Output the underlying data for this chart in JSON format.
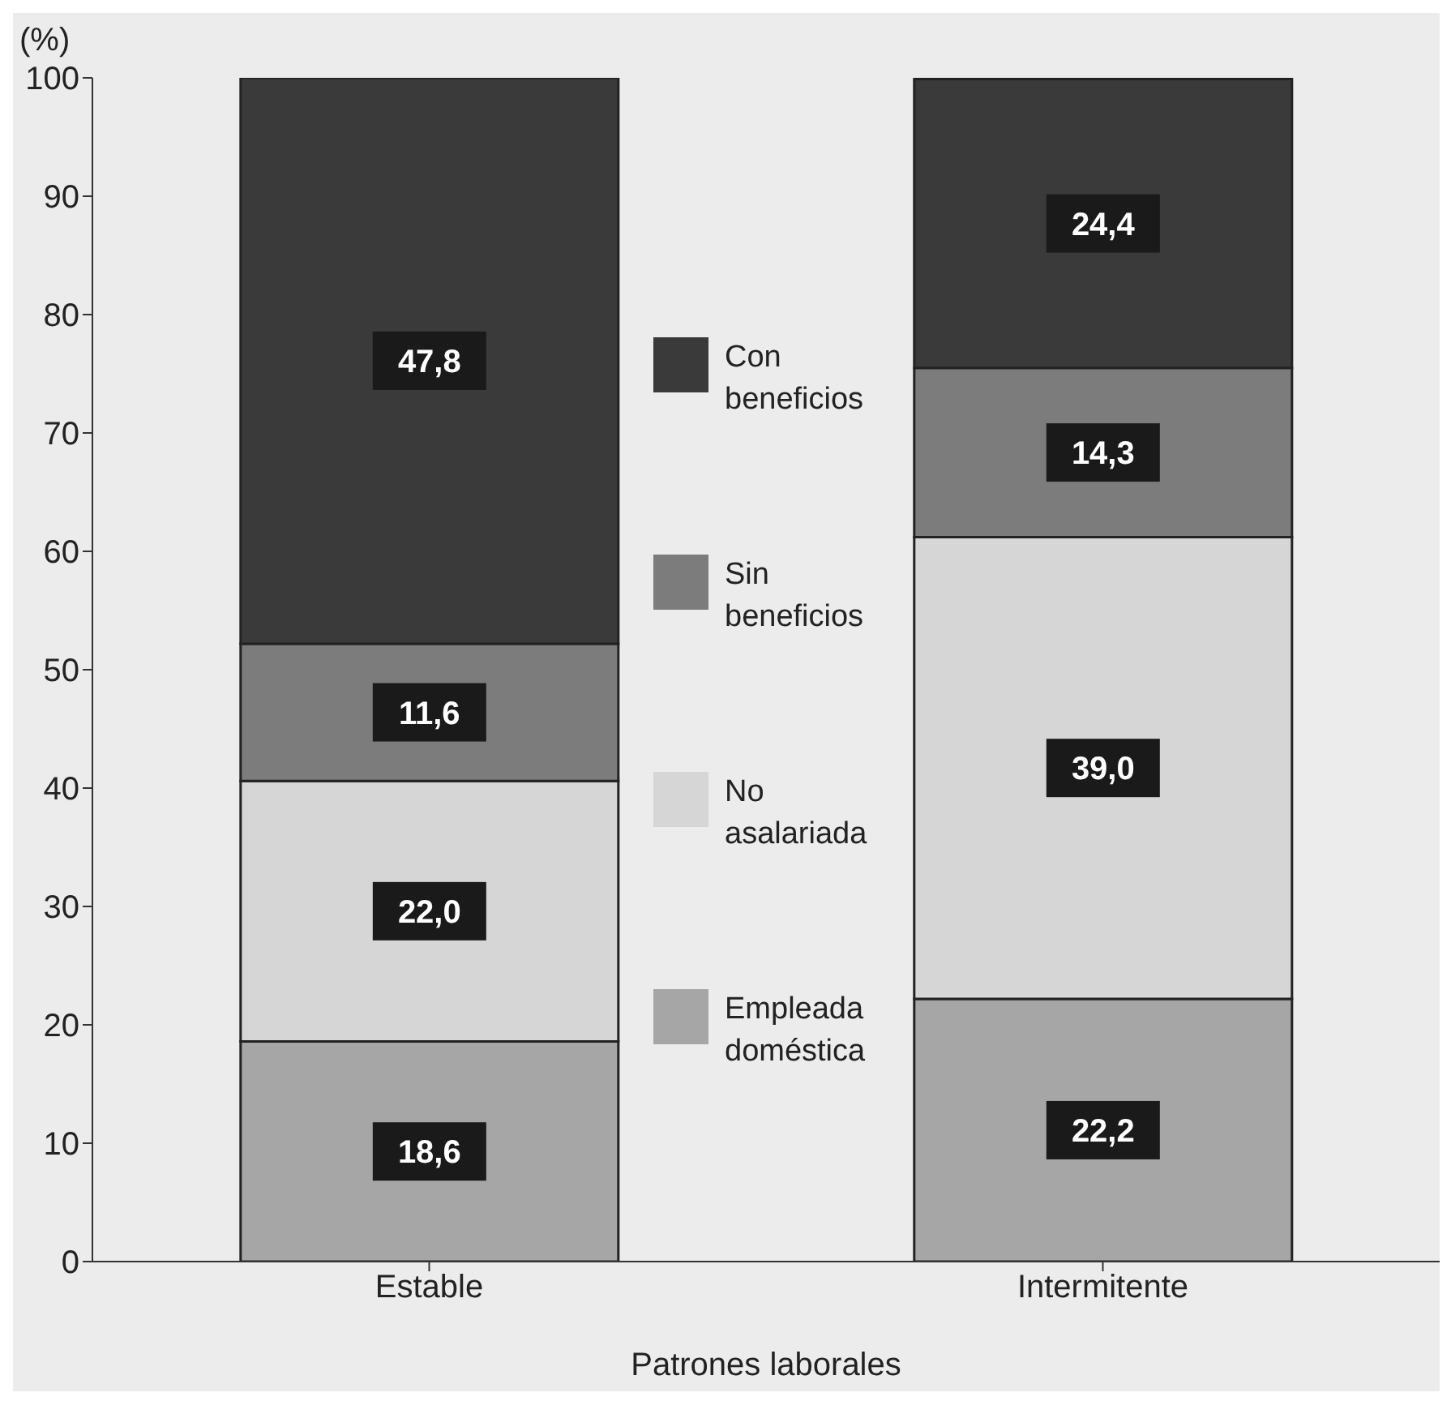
{
  "chart_data": {
    "type": "bar",
    "stacked": true,
    "ylabel": "(%)",
    "xlabel": "Patrones laborales",
    "categories": [
      "Estable",
      "Intermitente"
    ],
    "ylim": [
      0,
      100
    ],
    "yticks": [
      0,
      10,
      20,
      30,
      40,
      50,
      60,
      70,
      80,
      90,
      100
    ],
    "grid": false,
    "legend": "center",
    "series": [
      {
        "name": "Empleada doméstica",
        "color": "#a6a6a6",
        "values": [
          18.6,
          22.2
        ],
        "value_labels": [
          "18,6",
          "22,2"
        ]
      },
      {
        "name": "No asalariada",
        "color": "#d6d6d6",
        "values": [
          22.0,
          39.0
        ],
        "value_labels": [
          "22,0",
          "39,0"
        ]
      },
      {
        "name": "Sin beneficios",
        "color": "#7c7c7c",
        "values": [
          11.6,
          14.3
        ],
        "value_labels": [
          "11,6",
          "14,3"
        ]
      },
      {
        "name": "Con beneficios",
        "color": "#3a3a3a",
        "values": [
          47.8,
          24.4
        ],
        "value_labels": [
          "47,8",
          "24,4"
        ]
      }
    ]
  }
}
